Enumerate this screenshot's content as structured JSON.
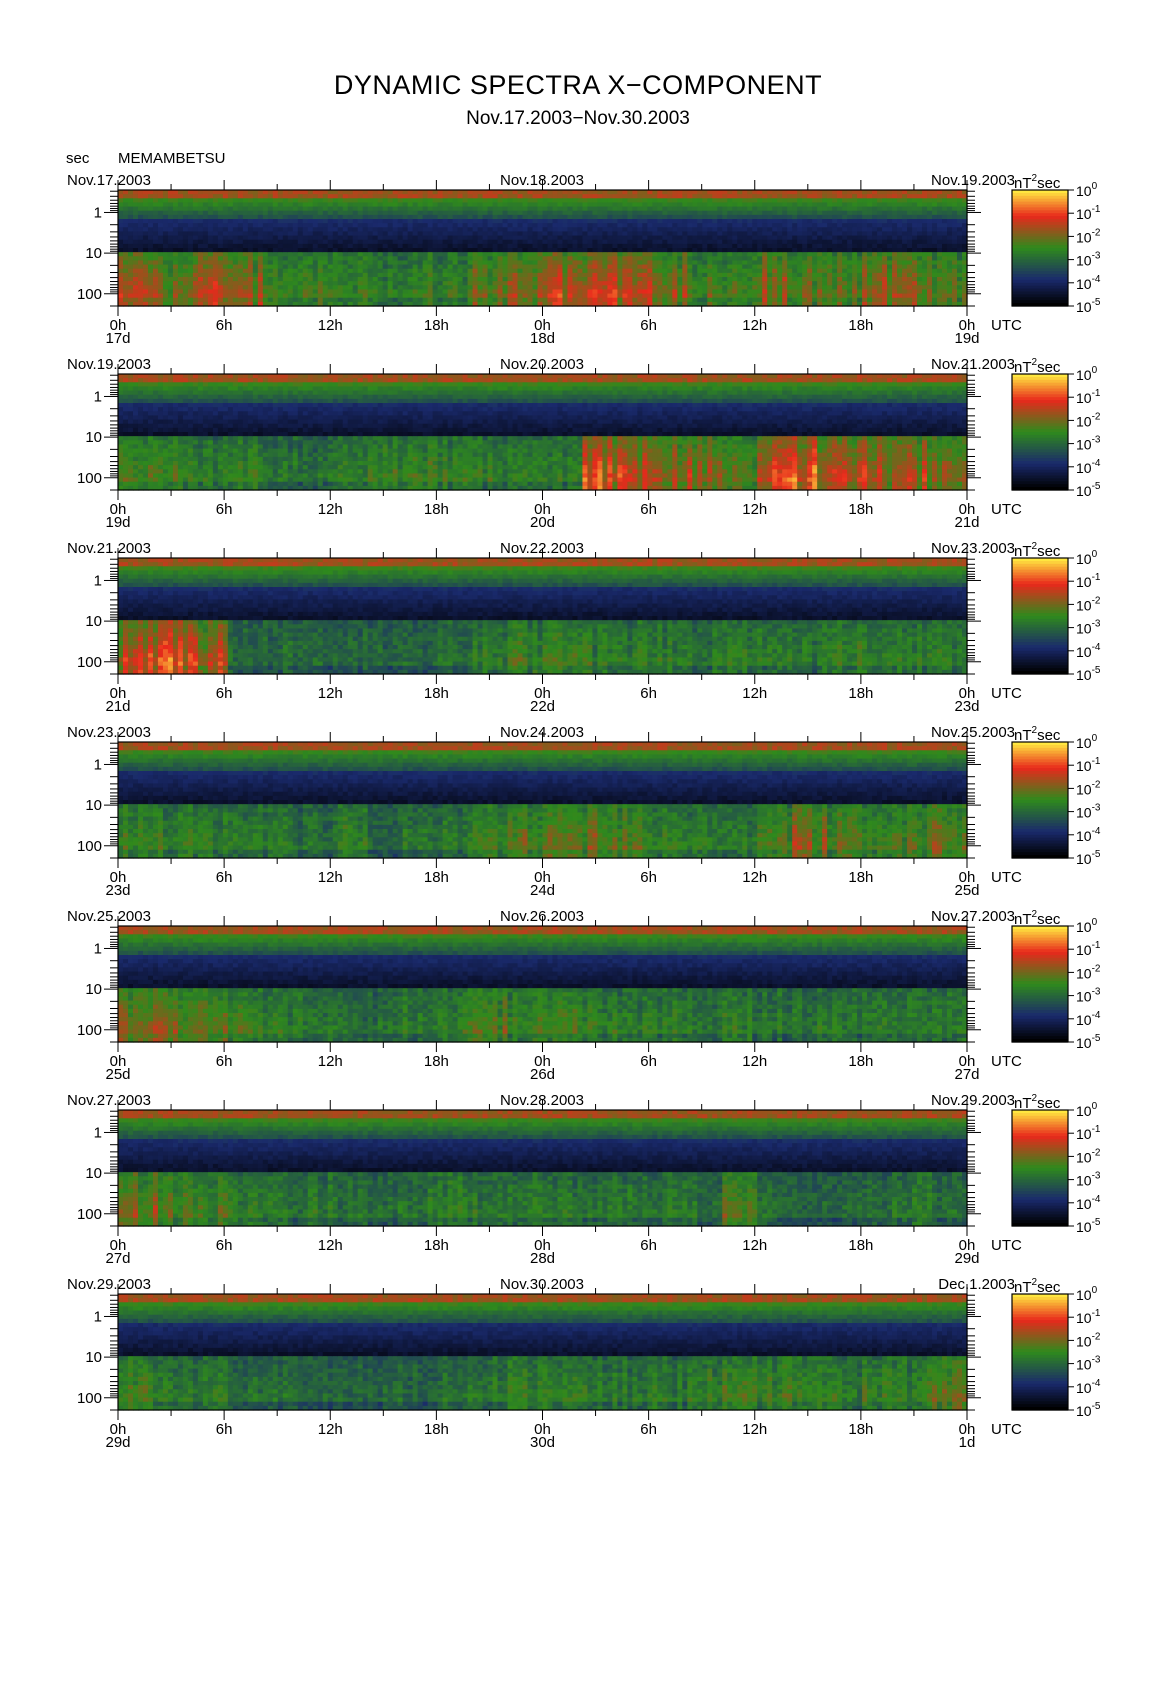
{
  "header": {
    "title": "DYNAMIC SPECTRA X−COMPONENT",
    "subtitle": "Nov.17.2003−Nov.30.2003",
    "period_unit": "sec",
    "station": "MEMAMBETSU"
  },
  "colors": {
    "background_low": "#000000",
    "blue": "#1a2a6c",
    "green": "#2f8a1c",
    "red": "#e8281c",
    "yellow": "#ffe840"
  },
  "chart_data": {
    "type": "heatmap",
    "x_axis": {
      "tick_labels": [
        "0h",
        "6h",
        "12h",
        "18h",
        "0h",
        "6h",
        "12h",
        "18h",
        "0h"
      ],
      "utc_label": "UTC"
    },
    "y_axis": {
      "label": "sec",
      "tick_labels": [
        "1",
        "10",
        "100"
      ],
      "log_scale": true
    },
    "colorbar": {
      "unit_base": "nT",
      "unit_exp": "2",
      "unit_suffix": "sec",
      "labels": [
        {
          "base": "10",
          "exp": "0"
        },
        {
          "base": "10",
          "exp": "-1"
        },
        {
          "base": "10",
          "exp": "-2"
        },
        {
          "base": "10",
          "exp": "-3"
        },
        {
          "base": "10",
          "exp": "-4"
        },
        {
          "base": "10",
          "exp": "-5"
        }
      ]
    },
    "panels": [
      {
        "date_left": "Nov.17.2003",
        "date_mid": "Nov.18.2003",
        "date_right": "Nov.19.2003",
        "day_labels": [
          "17d",
          "18d",
          "19d"
        ],
        "activity": [
          3.0,
          2.4,
          3.0,
          2.6,
          1.6,
          1.8,
          1.6,
          1.4,
          1.6,
          1.4,
          2.2,
          2.6,
          3.0,
          3.0,
          2.8,
          2.4,
          1.8,
          1.6,
          2.6,
          2.2,
          2.0,
          2.6,
          2.6,
          2.0
        ]
      },
      {
        "date_left": "Nov.19.2003",
        "date_mid": "Nov.20.2003",
        "date_right": "Nov.21.2003",
        "day_labels": [
          "19d",
          "20d",
          "21d"
        ],
        "activity": [
          1.8,
          1.6,
          1.4,
          1.4,
          1.2,
          1.0,
          1.4,
          1.6,
          1.8,
          1.6,
          1.4,
          1.2,
          1.2,
          3.4,
          3.0,
          2.8,
          2.6,
          2.0,
          3.2,
          3.6,
          3.4,
          3.0,
          2.8,
          2.4
        ]
      },
      {
        "date_left": "Nov.21.2003",
        "date_mid": "Nov.22.2003",
        "date_right": "Nov.23.2003",
        "day_labels": [
          "21d",
          "22d",
          "23d"
        ],
        "activity": [
          3.2,
          3.6,
          3.0,
          1.0,
          0.9,
          0.8,
          1.0,
          0.8,
          0.8,
          1.0,
          1.4,
          1.6,
          1.6,
          1.4,
          1.4,
          1.3,
          1.2,
          1.4,
          1.4,
          1.2,
          1.6,
          1.4,
          1.4,
          1.4
        ]
      },
      {
        "date_left": "Nov.23.2003",
        "date_mid": "Nov.24.2003",
        "date_right": "Nov.25.2003",
        "day_labels": [
          "23d",
          "24d",
          "25d"
        ],
        "activity": [
          1.6,
          1.6,
          1.4,
          1.2,
          1.2,
          1.0,
          1.6,
          0.8,
          1.2,
          1.2,
          1.6,
          2.0,
          2.2,
          2.2,
          1.8,
          1.4,
          1.2,
          1.2,
          1.8,
          2.4,
          2.0,
          1.8,
          1.8,
          2.2
        ]
      },
      {
        "date_left": "Nov.25.2003",
        "date_mid": "Nov.26.2003",
        "date_right": "Nov.27.2003",
        "day_labels": [
          "25d",
          "26d",
          "27d"
        ],
        "activity": [
          2.4,
          2.2,
          2.0,
          1.6,
          1.4,
          1.2,
          1.0,
          1.0,
          1.4,
          1.6,
          2.0,
          1.6,
          1.6,
          1.4,
          1.4,
          1.4,
          1.2,
          1.4,
          1.2,
          1.2,
          1.2,
          1.2,
          1.2,
          1.2
        ]
      },
      {
        "date_left": "Nov.27.2003",
        "date_mid": "Nov.28.2003",
        "date_right": "Nov.29.2003",
        "day_labels": [
          "27d",
          "28d",
          "29d"
        ],
        "activity": [
          2.4,
          2.0,
          1.8,
          1.4,
          1.2,
          1.2,
          1.0,
          1.0,
          1.2,
          1.4,
          1.4,
          1.2,
          1.2,
          1.2,
          1.2,
          1.2,
          1.0,
          2.0,
          1.0,
          0.8,
          0.8,
          1.0,
          1.2,
          1.0
        ]
      },
      {
        "date_left": "Nov.29.2003",
        "date_mid": "Nov.30.2003",
        "date_right": "Dec.1.2003",
        "day_labels": [
          "29d",
          "30d",
          "1d"
        ],
        "activity": [
          1.6,
          1.4,
          1.2,
          1.0,
          1.0,
          0.8,
          0.8,
          0.8,
          0.8,
          1.0,
          1.2,
          1.4,
          1.4,
          1.4,
          1.2,
          1.2,
          1.6,
          1.8,
          1.6,
          1.4,
          1.4,
          1.6,
          1.6,
          2.0
        ]
      }
    ]
  }
}
